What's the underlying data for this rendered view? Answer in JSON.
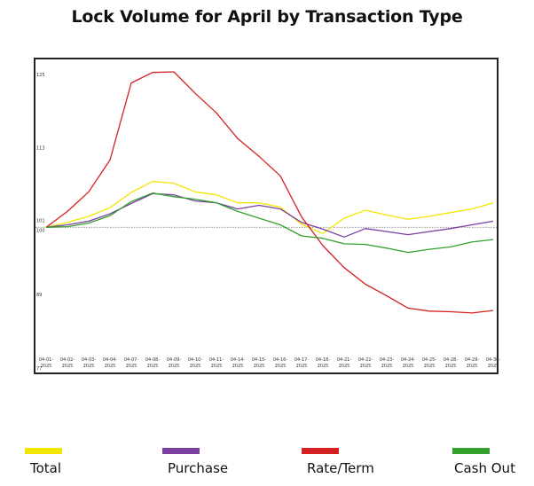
{
  "chart_data": {
    "type": "line",
    "title": "Lock Volume for April by Transaction Type",
    "xlabel": "",
    "ylabel": "",
    "categories": [
      "04-01-2025",
      "04-02-2025",
      "04-03-2025",
      "04-04-2025",
      "04-07-2025",
      "04-08-2025",
      "04-09-2025",
      "04-10-2025",
      "04-11-2025",
      "04-14-2025",
      "04-15-2025",
      "04-16-2025",
      "04-17-2025",
      "04-18-2025",
      "04-21-2025",
      "04-22-2025",
      "04-23-2025",
      "04-24-2025",
      "04-25-2025",
      "04-28-2025",
      "04-29-2025",
      "04-30-2025"
    ],
    "ylim": [
      77,
      127
    ],
    "yticks": [
      77,
      89,
      100,
      101,
      113,
      125
    ],
    "reference_line": 100,
    "grid": false,
    "legend_position": "bottom",
    "series": [
      {
        "name": "Total",
        "color": "#f2e600",
        "values": [
          100,
          100.8,
          101.8,
          103.2,
          105.7,
          107.5,
          107.2,
          105.8,
          105.3,
          104.0,
          104.0,
          103.3,
          100.5,
          99.0,
          101.5,
          102.8,
          102.0,
          101.3,
          101.8,
          102.4,
          103.0,
          104.0
        ]
      },
      {
        "name": "Purchase",
        "color": "#7b3fa0",
        "values": [
          100,
          100.4,
          101.0,
          102.2,
          103.9,
          105.5,
          105.3,
          104.3,
          104.0,
          103.0,
          103.6,
          103.0,
          100.8,
          99.7,
          98.4,
          99.8,
          99.3,
          98.8,
          99.3,
          99.8,
          100.4,
          101.0
        ]
      },
      {
        "name": "Rate/Term",
        "color": "#d42020",
        "values": [
          100,
          102.6,
          105.8,
          111.0,
          123.6,
          125.3,
          125.4,
          121.9,
          118.7,
          114.5,
          111.6,
          108.4,
          101.7,
          97.0,
          93.4,
          90.7,
          88.8,
          86.8,
          86.3,
          86.2,
          86.0,
          86.4
        ]
      },
      {
        "name": "Cash Out",
        "color": "#33a02c",
        "values": [
          100,
          100.1,
          100.7,
          101.9,
          104.2,
          105.6,
          105.0,
          104.6,
          104.0,
          102.6,
          101.5,
          100.4,
          98.6,
          98.2,
          97.3,
          97.2,
          96.6,
          95.9,
          96.4,
          96.8,
          97.6,
          98.0
        ]
      }
    ]
  }
}
